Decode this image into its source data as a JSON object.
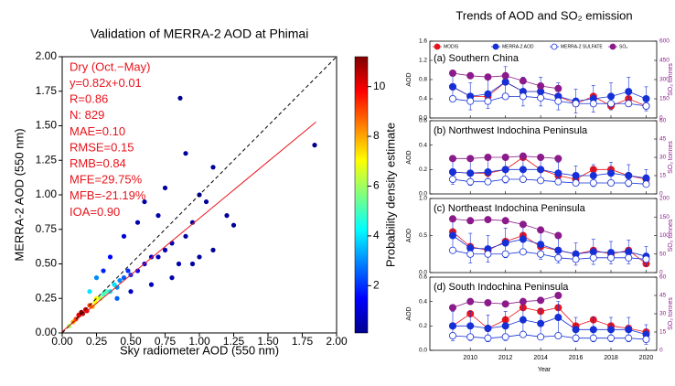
{
  "panel_group_title": "Trends of AOD and SO₂ emission",
  "legend": [
    {
      "name": "MODIS",
      "color": "#e8141c",
      "fill": "#e8141c"
    },
    {
      "name": "MERRA-2 AOD",
      "color": "#1530d8",
      "fill": "#1530d8"
    },
    {
      "name": "MERRA-2 SULFATE",
      "color": "#1530d8",
      "fill": "#ffffff"
    },
    {
      "name": "SO₂",
      "color": "#8b1a8b",
      "fill": "#8b1a8b"
    }
  ],
  "chart_data": [
    {
      "type": "scatter",
      "title": "Validation of MERRA-2 AOD at Phimai",
      "xlabel": "Sky radiometer AOD (550 nm)",
      "ylabel": "MERRA-2 AOD (550 nm)",
      "annotations": [
        "Dry (Oct.−May)",
        "y=0.82x+0.01",
        "R=0.86",
        "N: 829",
        "MAE=0.10",
        "RMSE=0.15",
        "RMB=0.84",
        "MFE=29.75%",
        "MFB=-21.19%",
        "IOA=0.90"
      ],
      "annotation_color": "#e8141c",
      "fit": {
        "slope": 0.82,
        "intercept": 0.01,
        "x_range": [
          0,
          1.85
        ],
        "color": "#e8141c"
      },
      "xlim": [
        0,
        2
      ],
      "ylim": [
        0,
        2
      ],
      "xticks": [
        {
          "value": 0,
          "label": "0.00"
        },
        {
          "value": 0.25,
          "label": "0.25"
        },
        {
          "value": 0.5,
          "label": "0.50"
        },
        {
          "value": 0.75,
          "label": "0.75"
        },
        {
          "value": 1,
          "label": "1.00"
        },
        {
          "value": 1.25,
          "label": "1.25"
        },
        {
          "value": 1.5,
          "label": "1.50"
        },
        {
          "value": 1.75,
          "label": "1.75"
        },
        {
          "value": 2,
          "label": "2.00"
        }
      ],
      "yticks": [
        {
          "value": 0,
          "label": "0.00"
        },
        {
          "value": 0.25,
          "label": "0.25"
        },
        {
          "value": 0.5,
          "label": "0.50"
        },
        {
          "value": 0.75,
          "label": "0.75"
        },
        {
          "value": 1,
          "label": "1.00"
        },
        {
          "value": 1.25,
          "label": "1.25"
        },
        {
          "value": 1.5,
          "label": "1.50"
        },
        {
          "value": 1.75,
          "label": "1.75"
        },
        {
          "value": 2,
          "label": "2.00"
        }
      ],
      "colorbar_label": "Probability density estimate",
      "clim": [
        0.1,
        11.2
      ],
      "cticks": [
        2,
        4,
        6,
        8,
        10
      ],
      "colormap": "jet",
      "x": [
        0.05,
        0.08,
        0.1,
        0.12,
        0.14,
        0.15,
        0.17,
        0.18,
        0.2,
        0.22,
        0.24,
        0.25,
        0.28,
        0.3,
        0.32,
        0.35,
        0.38,
        0.4,
        0.42,
        0.45,
        0.48,
        0.5,
        0.55,
        0.6,
        0.65,
        0.7,
        0.75,
        0.8,
        0.85,
        0.9,
        0.95,
        1.0,
        1.05,
        1.1,
        1.2,
        1.25,
        1.84,
        0.86,
        0.6,
        0.55,
        0.75,
        0.9,
        1.0,
        0.45,
        0.5,
        0.7,
        0.35,
        0.3,
        0.65,
        0.8,
        0.95,
        1.1,
        0.4,
        0.25,
        0.2
      ],
      "y": [
        0.05,
        0.08,
        0.1,
        0.13,
        0.15,
        0.14,
        0.17,
        0.16,
        0.2,
        0.19,
        0.22,
        0.25,
        0.25,
        0.28,
        0.3,
        0.3,
        0.35,
        0.33,
        0.38,
        0.4,
        0.45,
        0.42,
        0.45,
        0.5,
        0.55,
        0.55,
        0.6,
        0.65,
        0.5,
        0.7,
        0.8,
        1.0,
        0.95,
        1.2,
        0.85,
        0.78,
        1.36,
        1.7,
        0.95,
        0.8,
        1.05,
        1.3,
        0.55,
        0.7,
        0.3,
        0.85,
        0.55,
        0.45,
        0.35,
        0.4,
        0.5,
        0.6,
        0.25,
        0.4,
        0.3
      ],
      "density": [
        6,
        8,
        9,
        10,
        11,
        11,
        10,
        10,
        9,
        8,
        7,
        7,
        6,
        5,
        5,
        4,
        4,
        3,
        3,
        2.5,
        2,
        2,
        1.5,
        1.2,
        1,
        0.8,
        0.7,
        0.6,
        0.6,
        0.5,
        0.5,
        0.4,
        0.4,
        0.4,
        0.4,
        0.4,
        0.3,
        0.3,
        0.5,
        0.6,
        0.5,
        0.4,
        0.4,
        1,
        0.9,
        0.6,
        1.5,
        1.8,
        0.8,
        0.6,
        0.5,
        0.4,
        2.5,
        3,
        4
      ]
    },
    {
      "type": "line",
      "title": "(a) Southern China",
      "ylabel": "AOD",
      "y2label": "SO₂ tonnes",
      "x": [
        2009,
        2010,
        2011,
        2012,
        2013,
        2014,
        2015,
        2016,
        2017,
        2018,
        2019,
        2020
      ],
      "xlim": [
        2007.7,
        2020.6
      ],
      "xticks": [
        2010,
        2012,
        2014,
        2016,
        2018,
        2020
      ],
      "ylim": [
        0,
        1.6
      ],
      "yticks": [
        {
          "value": 0,
          "label": "0.0"
        },
        0.4,
        0.8,
        1.2,
        1.6
      ],
      "y2lim": [
        0,
        600
      ],
      "y2ticks": [
        0,
        150,
        300,
        450,
        600
      ],
      "series": [
        {
          "values": [
            0.65,
            0.45,
            0.45,
            0.75,
            0.55,
            0.55,
            0.45,
            0.3,
            0.45,
            0.25,
            0.4,
            0.25
          ]
        },
        {
          "values": [
            0.65,
            0.45,
            0.5,
            0.75,
            0.55,
            0.55,
            0.45,
            0.35,
            0.4,
            0.45,
            0.55,
            0.4
          ],
          "errors": [
            0.3,
            0.28,
            0.3,
            0.32,
            0.3,
            0.3,
            0.28,
            0.25,
            0.28,
            0.28,
            0.3,
            0.25
          ]
        },
        {
          "values": [
            0.4,
            0.35,
            0.35,
            0.45,
            0.45,
            0.42,
            0.35,
            0.3,
            0.3,
            0.3,
            0.3,
            0.25
          ]
        },
        {
          "values": [
            350,
            330,
            320,
            330,
            290,
            250,
            230,
            null,
            null,
            null,
            null,
            null
          ],
          "axis": "y2"
        }
      ]
    },
    {
      "type": "line",
      "title": "(b) Northwest Indochina Peninsula",
      "ylabel": "AOD",
      "y2label": "SO₂ tonnes",
      "x": [
        2009,
        2010,
        2011,
        2012,
        2013,
        2014,
        2015,
        2016,
        2017,
        2018,
        2019,
        2020
      ],
      "xlim": [
        2007.7,
        2020.6
      ],
      "xticks": [
        2010,
        2012,
        2014,
        2016,
        2018,
        2020
      ],
      "ylim": [
        0,
        0.6
      ],
      "yticks": [
        {
          "value": 0,
          "label": "0.0"
        },
        0.2,
        0.4,
        0.6
      ],
      "y2lim": [
        0,
        60
      ],
      "y2ticks": [
        0,
        15,
        30,
        45,
        60
      ],
      "series": [
        {
          "values": [
            0.18,
            0.17,
            0.17,
            0.2,
            0.3,
            0.2,
            0.15,
            0.12,
            0.2,
            0.2,
            0.15,
            0.12
          ]
        },
        {
          "values": [
            0.18,
            0.17,
            0.18,
            0.2,
            0.2,
            0.2,
            0.17,
            0.15,
            0.15,
            0.17,
            0.15,
            0.13
          ],
          "errors": [
            0.1,
            0.1,
            0.1,
            0.11,
            0.1,
            0.1,
            0.09,
            0.08,
            0.09,
            0.09,
            0.09,
            0.07
          ]
        },
        {
          "values": [
            0.12,
            0.1,
            0.1,
            0.12,
            0.12,
            0.11,
            0.1,
            0.09,
            0.09,
            0.09,
            0.09,
            0.08
          ]
        },
        {
          "values": [
            29,
            29,
            30,
            30,
            31,
            30,
            29,
            null,
            null,
            null,
            null,
            null
          ],
          "axis": "y2"
        }
      ]
    },
    {
      "type": "line",
      "title": "(c) Northeast Indochina Peninsula",
      "ylabel": "AOD",
      "y2label": "SO₂ tonnes",
      "x": [
        2009,
        2010,
        2011,
        2012,
        2013,
        2014,
        2015,
        2016,
        2017,
        2018,
        2019,
        2020
      ],
      "xlim": [
        2007.7,
        2020.6
      ],
      "xticks": [
        2010,
        2012,
        2014,
        2016,
        2018,
        2020
      ],
      "ylim": [
        0,
        1.0
      ],
      "yticks": [
        {
          "value": 0,
          "label": "0.0"
        },
        0.5,
        {
          "value": 1,
          "label": "1.0"
        }
      ],
      "y2lim": [
        0,
        200
      ],
      "y2ticks": [
        0,
        50,
        100,
        150,
        200
      ],
      "series": [
        {
          "values": [
            0.55,
            0.35,
            0.3,
            0.42,
            0.5,
            0.35,
            0.3,
            0.25,
            0.3,
            0.25,
            0.3,
            0.12
          ]
        },
        {
          "values": [
            0.5,
            0.33,
            0.32,
            0.4,
            0.45,
            0.38,
            0.3,
            0.25,
            0.28,
            0.27,
            0.28,
            0.22
          ],
          "errors": [
            0.2,
            0.2,
            0.18,
            0.2,
            0.2,
            0.2,
            0.17,
            0.15,
            0.17,
            0.15,
            0.16,
            0.13
          ]
        },
        {
          "values": [
            0.3,
            0.25,
            0.25,
            0.25,
            0.28,
            0.25,
            0.2,
            0.18,
            0.2,
            0.2,
            0.2,
            0.18
          ]
        },
        {
          "values": [
            145,
            140,
            143,
            140,
            130,
            115,
            100,
            null,
            null,
            null,
            null,
            null
          ],
          "axis": "y2"
        }
      ]
    },
    {
      "type": "line",
      "title": "(d) South Indochina Peninsula",
      "ylabel": "AOD",
      "y2label": "SO₂ tonnes",
      "xlabel": "Year",
      "x": [
        2009,
        2010,
        2011,
        2012,
        2013,
        2014,
        2015,
        2016,
        2017,
        2018,
        2019,
        2020
      ],
      "xlim": [
        2007.7,
        2020.6
      ],
      "xticks": [
        2010,
        2012,
        2014,
        2016,
        2018,
        2020
      ],
      "ylim": [
        0,
        0.6
      ],
      "yticks": [
        {
          "value": 0,
          "label": "0.0"
        },
        0.2,
        0.4,
        0.6
      ],
      "y2lim": [
        0,
        60
      ],
      "y2ticks": [
        0,
        15,
        30,
        45,
        60
      ],
      "series": [
        {
          "values": [
            0.2,
            0.3,
            0.18,
            0.25,
            0.35,
            0.32,
            0.35,
            0.2,
            0.25,
            0.2,
            0.18,
            0.15
          ]
        },
        {
          "values": [
            0.2,
            0.2,
            0.18,
            0.2,
            0.25,
            0.22,
            0.27,
            0.17,
            0.17,
            0.17,
            0.17,
            0.13
          ],
          "errors": [
            0.12,
            0.12,
            0.11,
            0.12,
            0.13,
            0.12,
            0.13,
            0.1,
            0.1,
            0.1,
            0.1,
            0.08
          ]
        },
        {
          "values": [
            0.12,
            0.11,
            0.1,
            0.11,
            0.13,
            0.11,
            0.12,
            0.1,
            0.1,
            0.1,
            0.1,
            0.09
          ]
        },
        {
          "values": [
            35,
            40,
            39,
            38,
            40,
            41,
            45,
            null,
            null,
            null,
            null,
            null
          ],
          "axis": "y2"
        }
      ]
    }
  ]
}
